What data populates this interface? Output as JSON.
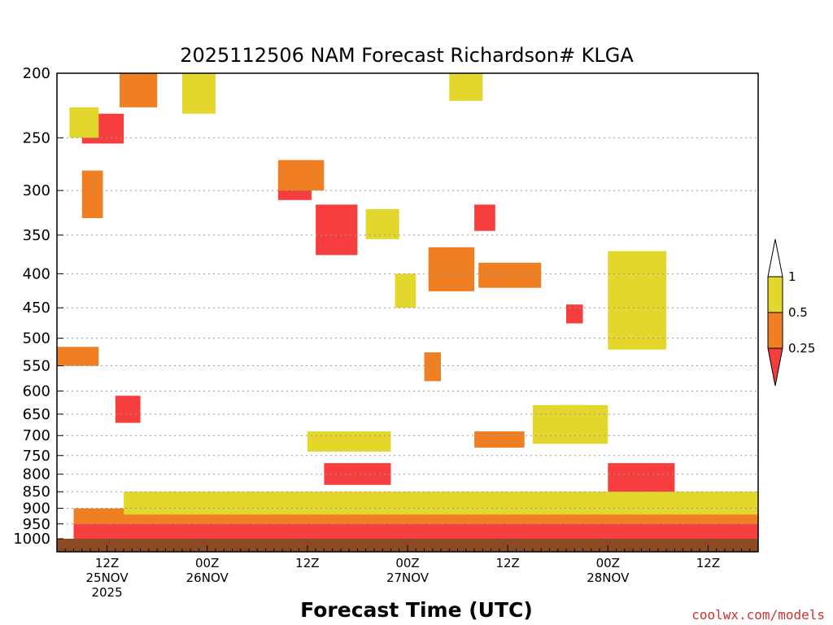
{
  "chart_data": {
    "type": "heatmap",
    "title": "2025112506 NAM Forecast Richardson# KLGA",
    "xlabel": "Forecast Time (UTC)",
    "ylabel": "",
    "credit": "coolwx.com/models",
    "y_scale": "log",
    "y_inverted": true,
    "ylim": [
      1000,
      200
    ],
    "x_range_hours": [
      0,
      84
    ],
    "y_ticks": [
      200,
      250,
      300,
      350,
      400,
      450,
      500,
      550,
      600,
      650,
      700,
      750,
      800,
      850,
      900,
      950,
      1000
    ],
    "x_ticks": [
      {
        "hour": 6,
        "line1": "12Z",
        "line2": "25NOV",
        "line3": "2025"
      },
      {
        "hour": 18,
        "line1": "00Z",
        "line2": "26NOV",
        "line3": ""
      },
      {
        "hour": 30,
        "line1": "12Z",
        "line2": "",
        "line3": ""
      },
      {
        "hour": 42,
        "line1": "00Z",
        "line2": "27NOV",
        "line3": ""
      },
      {
        "hour": 54,
        "line1": "12Z",
        "line2": "",
        "line3": ""
      },
      {
        "hour": 66,
        "line1": "00Z",
        "line2": "28NOV",
        "line3": ""
      },
      {
        "hour": 78,
        "line1": "12Z",
        "line2": "",
        "line3": ""
      }
    ],
    "grid": "horizontal dotted",
    "legend": {
      "placement": "right",
      "labels": [
        "1",
        "0.5",
        "0.25"
      ],
      "bins": [
        {
          "range": ">1",
          "color": "#ffffff"
        },
        {
          "range": "0.5-1",
          "color": "#e3d62d"
        },
        {
          "range": "0.25-0.5",
          "color": "#f07f23"
        },
        {
          "range": "<0.25",
          "color": "#f73e3e"
        }
      ]
    },
    "colors": {
      "yellow": "#e3d62d",
      "orange": "#f07f23",
      "red": "#f73e3e",
      "ground": "#8b4a24"
    },
    "series": [
      {
        "category": "red",
        "regions": [
          {
            "hours": [
              3,
              8
            ],
            "p": [
              230,
              255
            ]
          },
          {
            "hours": [
              26.5,
              30.5
            ],
            "p": [
              280,
              310
            ]
          },
          {
            "hours": [
              31,
              36
            ],
            "p": [
              315,
              375
            ]
          },
          {
            "hours": [
              50,
              52.5
            ],
            "p": [
              315,
              345
            ]
          },
          {
            "hours": [
              61,
              63
            ],
            "p": [
              445,
              475
            ]
          },
          {
            "hours": [
              7,
              10
            ],
            "p": [
              610,
              670
            ]
          },
          {
            "hours": [
              32,
              40
            ],
            "p": [
              770,
              830
            ]
          },
          {
            "hours": [
              66,
              74
            ],
            "p": [
              770,
              860
            ]
          },
          {
            "hours": [
              2,
              84
            ],
            "p": [
              930,
              1000
            ]
          }
        ]
      },
      {
        "category": "orange",
        "regions": [
          {
            "hours": [
              7.5,
              12
            ],
            "p": [
              200,
              225
            ]
          },
          {
            "hours": [
              3,
              5.5
            ],
            "p": [
              280,
              330
            ]
          },
          {
            "hours": [
              26.5,
              32
            ],
            "p": [
              270,
              300
            ]
          },
          {
            "hours": [
              44.5,
              50
            ],
            "p": [
              365,
              425
            ]
          },
          {
            "hours": [
              50.5,
              58
            ],
            "p": [
              385,
              420
            ]
          },
          {
            "hours": [
              0,
              5
            ],
            "p": [
              515,
              550
            ]
          },
          {
            "hours": [
              44,
              46
            ],
            "p": [
              525,
              580
            ]
          },
          {
            "hours": [
              60,
              63
            ],
            "p": [
              630,
              660
            ]
          },
          {
            "hours": [
              50,
              56
            ],
            "p": [
              690,
              730
            ]
          },
          {
            "hours": [
              2,
              84
            ],
            "p": [
              900,
              950
            ]
          }
        ]
      },
      {
        "category": "yellow",
        "regions": [
          {
            "hours": [
              1.5,
              5
            ],
            "p": [
              225,
              250
            ]
          },
          {
            "hours": [
              15,
              19
            ],
            "p": [
              200,
              230
            ]
          },
          {
            "hours": [
              37,
              41
            ],
            "p": [
              320,
              355
            ]
          },
          {
            "hours": [
              47,
              51
            ],
            "p": [
              200,
              220
            ]
          },
          {
            "hours": [
              40.5,
              43
            ],
            "p": [
              400,
              450
            ]
          },
          {
            "hours": [
              57,
              66
            ],
            "p": [
              630,
              720
            ]
          },
          {
            "hours": [
              66,
              73
            ],
            "p": [
              370,
              520
            ]
          },
          {
            "hours": [
              30,
              40
            ],
            "p": [
              690,
              740
            ]
          },
          {
            "hours": [
              8,
              84
            ],
            "p": [
              850,
              920
            ]
          }
        ]
      }
    ]
  }
}
